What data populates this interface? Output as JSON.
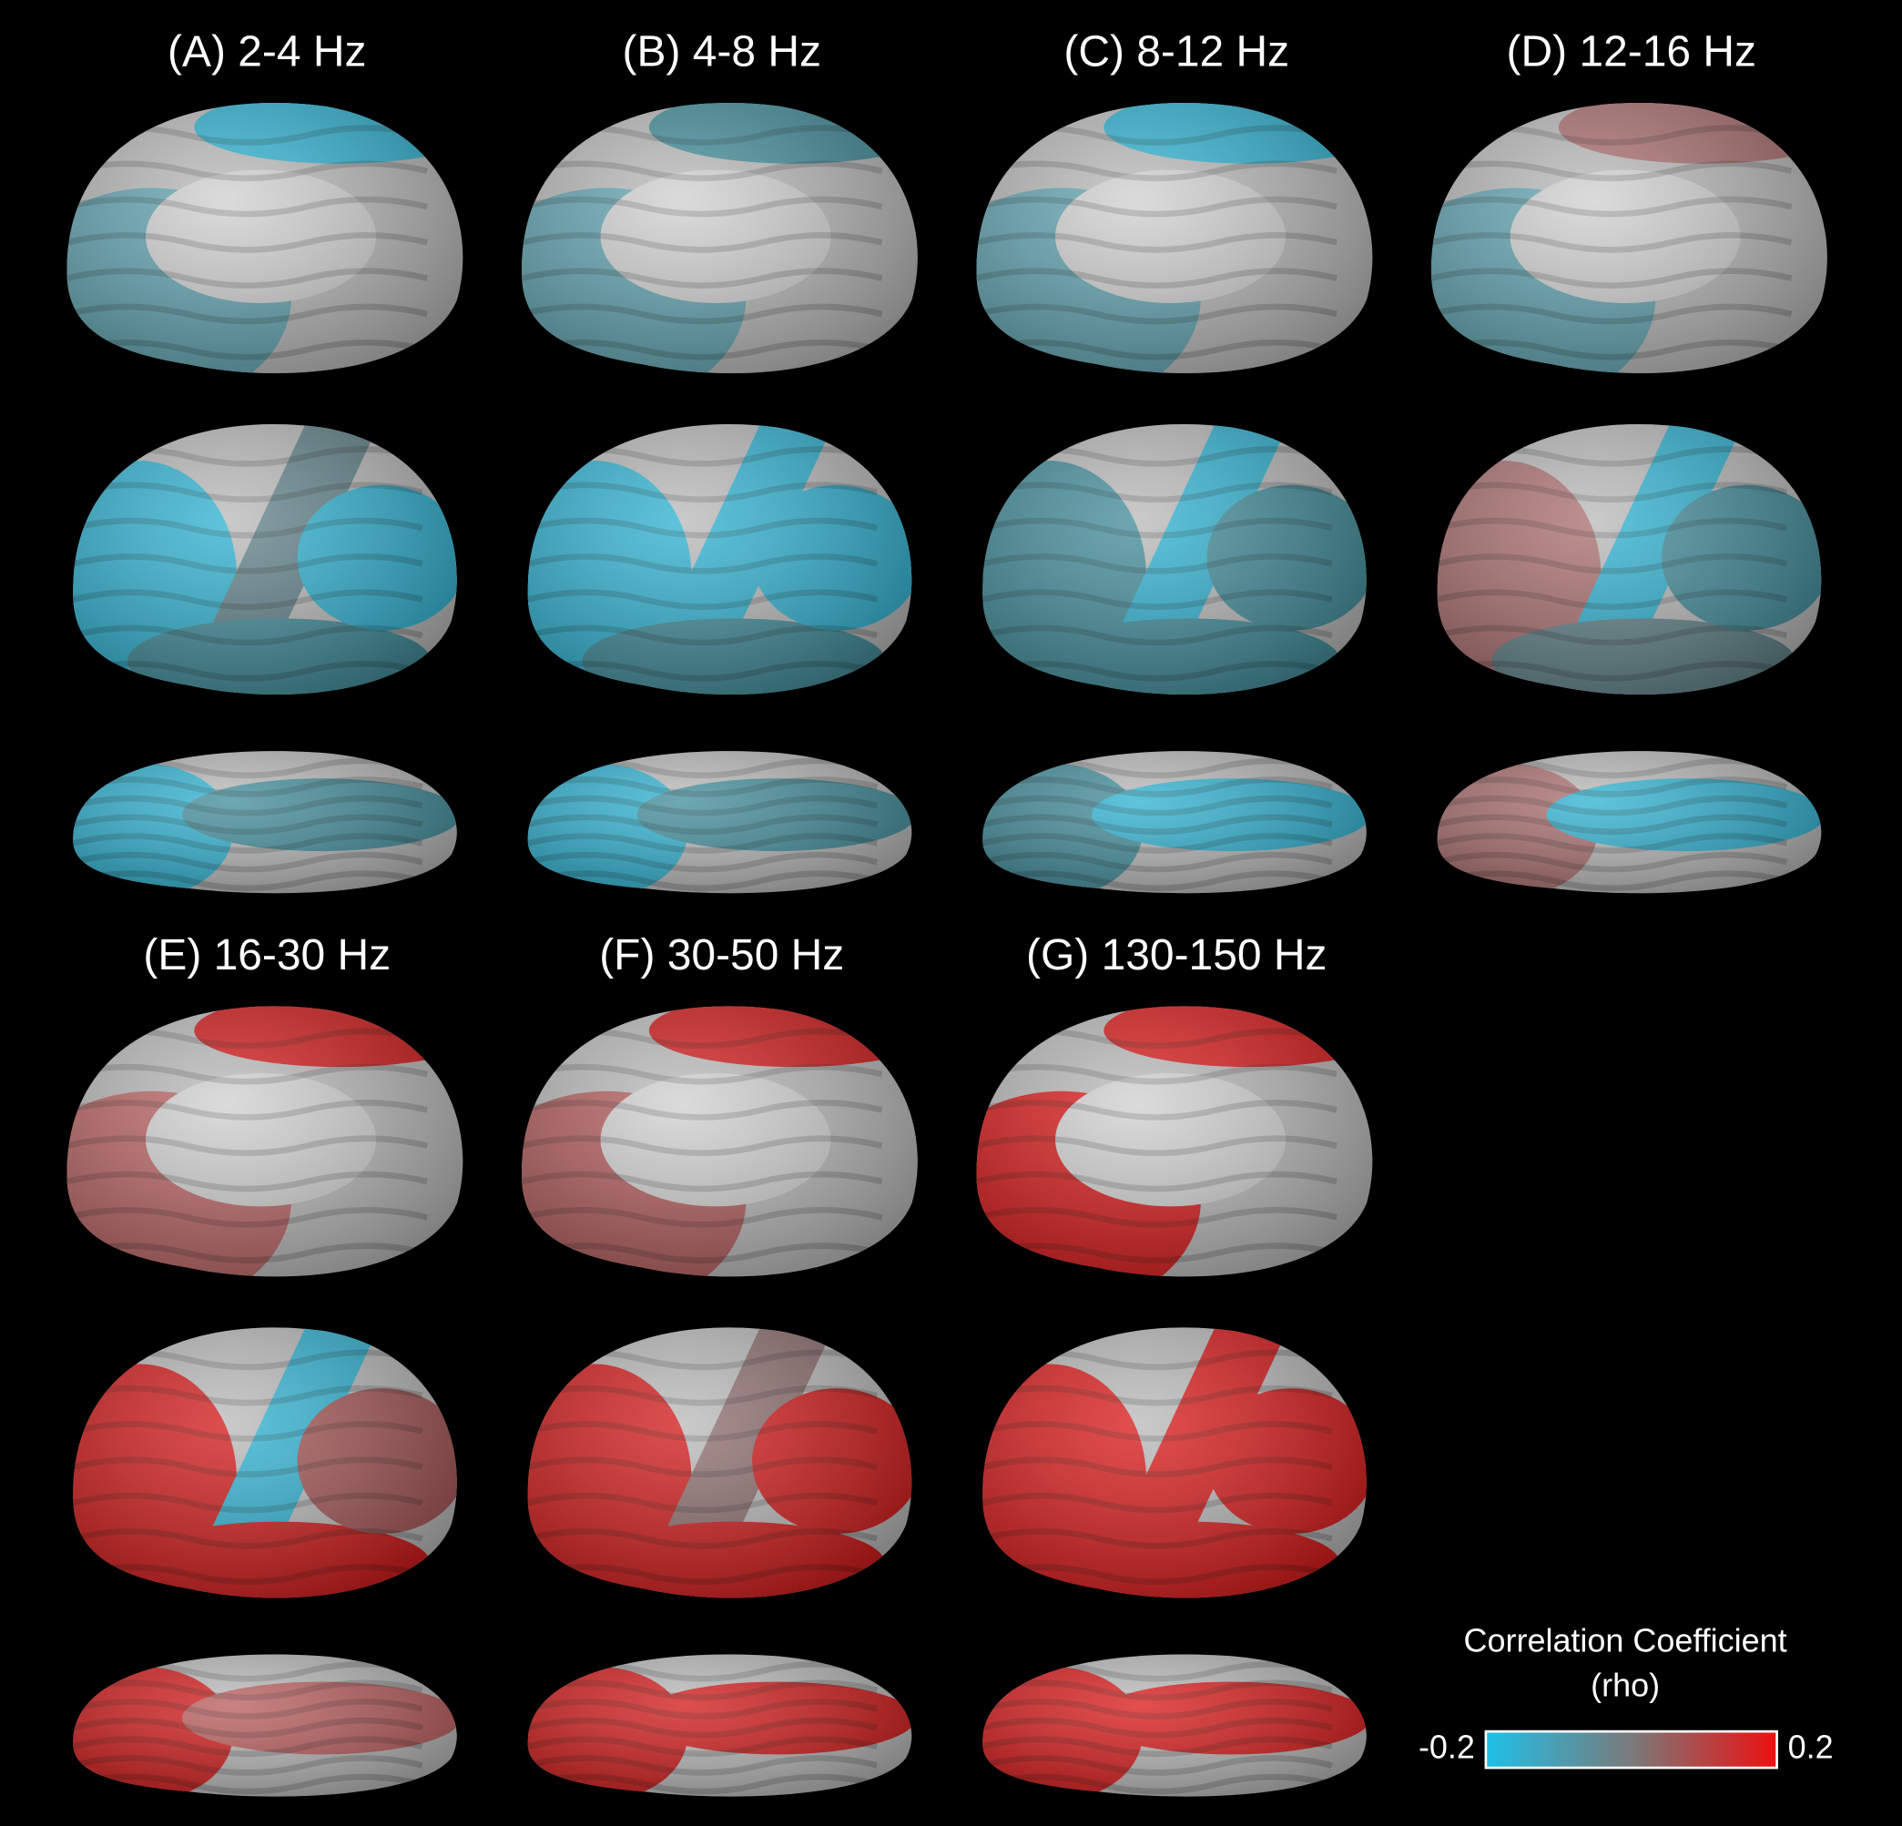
{
  "panels": [
    {
      "label": "(A) 2-4 Hz"
    },
    {
      "label": "(B) 4-8 Hz"
    },
    {
      "label": "(C) 8-12 Hz"
    },
    {
      "label": "(D) 12-16 Hz"
    },
    {
      "label": "(E) 16-30 Hz"
    },
    {
      "label": "(F) 30-50 Hz"
    },
    {
      "label": "(G) 130-150 Hz"
    }
  ],
  "colorbar": {
    "title": "Correlation Coefficient",
    "subtitle": "(rho)",
    "min_label": "-0.2",
    "max_label": "0.2"
  }
}
